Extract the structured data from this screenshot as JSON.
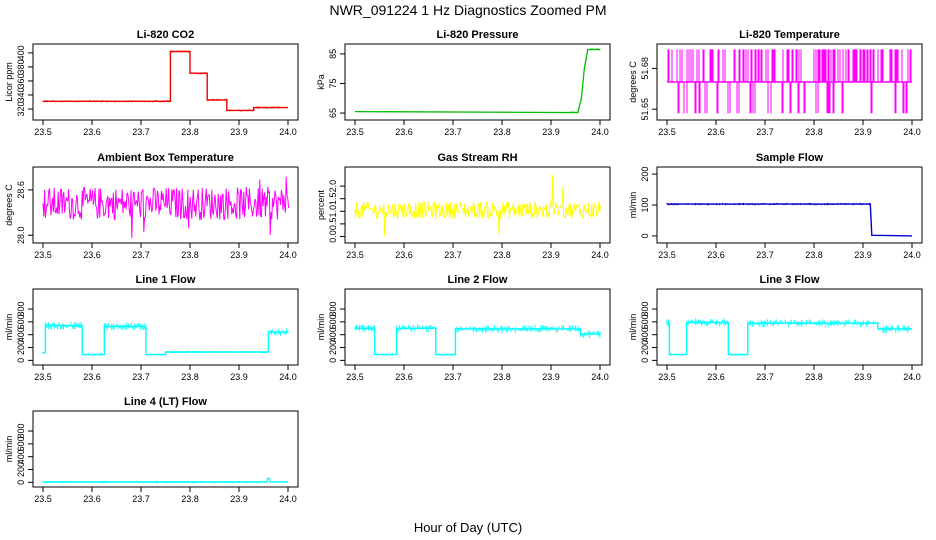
{
  "figure": {
    "title": "NWR_091224  1 Hz Diagnostics Zoomed PM",
    "xlabel": "Hour of Day (UTC)"
  },
  "chart_data": [
    {
      "type": "line",
      "title": "Li-820 CO2",
      "ylabel": "Licor ppm",
      "xlim": [
        23.5,
        24.0
      ],
      "ylim": [
        310,
        407
      ],
      "xticks": [
        23.5,
        23.6,
        23.7,
        23.8,
        23.9,
        24.0
      ],
      "yticks": [
        320,
        340,
        360,
        380,
        400
      ],
      "color": "#ee0000",
      "style": "step",
      "series": [
        {
          "x": [
            23.5,
            23.76,
            23.76,
            23.8,
            23.8,
            23.835,
            23.835,
            23.875,
            23.875,
            23.93,
            23.93,
            24.0
          ],
          "y": [
            331,
            331,
            402,
            402,
            371,
            371,
            333,
            333,
            318,
            318,
            322,
            322
          ]
        }
      ]
    },
    {
      "type": "line",
      "title": "Li-820 Pressure",
      "ylabel": "kPa",
      "xlim": [
        23.5,
        24.0
      ],
      "ylim": [
        64,
        87
      ],
      "xticks": [
        23.5,
        23.6,
        23.7,
        23.8,
        23.9,
        24.0
      ],
      "yticks": [
        65,
        75,
        85
      ],
      "color": "#00bb00",
      "style": "points",
      "series": [
        {
          "x": [
            23.5,
            23.93,
            23.955,
            23.962,
            23.968,
            23.975,
            24.0
          ],
          "y": [
            65.5,
            65.2,
            65.2,
            70,
            80,
            86.5,
            86.5
          ]
        }
      ]
    },
    {
      "type": "line",
      "title": "Li-820 Temperature",
      "ylabel": "degrees C",
      "xlim": [
        23.5,
        24.0
      ],
      "ylim": [
        51.645,
        51.695
      ],
      "xticks": [
        23.5,
        23.6,
        23.7,
        23.8,
        23.9,
        24.0
      ],
      "yticks": [
        51.65,
        51.68
      ],
      "color": "#ff00ff",
      "style": "noise",
      "series": [
        {
          "levels": [
            51.647,
            51.67,
            51.694
          ],
          "base": 51.67
        }
      ]
    },
    {
      "type": "line",
      "title": "Ambient Box Temperature",
      "ylabel": "degrees C",
      "xlim": [
        23.5,
        24.0
      ],
      "ylim": [
        27.95,
        28.85
      ],
      "xticks": [
        23.5,
        23.6,
        23.7,
        23.8,
        23.9,
        24.0
      ],
      "yticks": [
        28.0,
        28.6
      ],
      "color": "#ff00ff",
      "style": "noise",
      "series": [
        {
          "mean": 28.42,
          "spread": 0.22,
          "spike_max": 28.85,
          "spike_min": 27.95
        }
      ]
    },
    {
      "type": "line",
      "title": "Gas Stream RH",
      "ylabel": "percent",
      "xlim": [
        23.5,
        24.0
      ],
      "ylim": [
        -0.1,
        2.6
      ],
      "xticks": [
        23.5,
        23.6,
        23.7,
        23.8,
        23.9,
        24.0
      ],
      "yticks": [
        0.0,
        0.5,
        1.0,
        1.5,
        2.0
      ],
      "color": "#ffff00",
      "style": "noise",
      "series": [
        {
          "mean": 1.05,
          "spread": 0.35,
          "spike_max": 2.5,
          "spike_min": -0.1
        }
      ]
    },
    {
      "type": "line",
      "title": "Sample Flow",
      "ylabel": "ml/min",
      "xlim": [
        23.5,
        24.0
      ],
      "ylim": [
        -10,
        210
      ],
      "xticks": [
        23.5,
        23.6,
        23.7,
        23.8,
        23.9,
        24.0
      ],
      "yticks": [
        0,
        100,
        200
      ],
      "color": "#0000cc",
      "style": "step",
      "series": [
        {
          "x": [
            23.5,
            23.915,
            23.918,
            24.0
          ],
          "y": [
            103,
            103,
            2,
            0
          ]
        }
      ]
    },
    {
      "type": "line",
      "title": "Line 1 Flow",
      "ylabel": "ml/min",
      "xlim": [
        23.5,
        24.0
      ],
      "ylim": [
        -10,
        1050
      ],
      "xticks": [
        23.5,
        23.6,
        23.7,
        23.8,
        23.9,
        24.0
      ],
      "yticks": [
        0,
        200,
        400,
        600,
        800
      ],
      "color": "#00ffff",
      "style": "step",
      "series": [
        {
          "x": [
            23.5,
            23.505,
            23.505,
            23.58,
            23.58,
            23.625,
            23.625,
            23.71,
            23.71,
            23.75,
            23.75,
            23.96,
            23.96,
            24.0
          ],
          "y": [
            120,
            120,
            540,
            540,
            90,
            90,
            530,
            530,
            90,
            90,
            130,
            130,
            440,
            440
          ]
        }
      ]
    },
    {
      "type": "line",
      "title": "Line 2 Flow",
      "ylabel": "ml/min",
      "xlim": [
        23.5,
        24.0
      ],
      "ylim": [
        -10,
        1050
      ],
      "xticks": [
        23.5,
        23.6,
        23.7,
        23.8,
        23.9,
        24.0
      ],
      "yticks": [
        0,
        200,
        400,
        600,
        800
      ],
      "color": "#00ffff",
      "style": "step",
      "series": [
        {
          "x": [
            23.5,
            23.54,
            23.54,
            23.585,
            23.585,
            23.665,
            23.665,
            23.705,
            23.705,
            23.96,
            23.96,
            24.0
          ],
          "y": [
            500,
            500,
            90,
            90,
            500,
            500,
            90,
            90,
            490,
            490,
            410,
            410
          ]
        }
      ]
    },
    {
      "type": "line",
      "title": "Line 3 Flow",
      "ylabel": "ml/min",
      "xlim": [
        23.5,
        24.0
      ],
      "ylim": [
        -10,
        1050
      ],
      "xticks": [
        23.5,
        23.6,
        23.7,
        23.8,
        23.9,
        24.0
      ],
      "yticks": [
        0,
        200,
        400,
        600,
        800
      ],
      "color": "#00ffff",
      "style": "step",
      "series": [
        {
          "x": [
            23.5,
            23.505,
            23.505,
            23.54,
            23.54,
            23.625,
            23.625,
            23.665,
            23.665,
            23.93,
            23.93,
            24.0
          ],
          "y": [
            580,
            580,
            90,
            90,
            590,
            590,
            90,
            90,
            580,
            580,
            490,
            490
          ]
        }
      ]
    },
    {
      "type": "line",
      "title": "Line 4 (LT) Flow",
      "ylabel": "ml/min",
      "xlim": [
        23.5,
        24.0
      ],
      "ylim": [
        -10,
        1050
      ],
      "xticks": [
        23.5,
        23.6,
        23.7,
        23.8,
        23.9,
        24.0
      ],
      "yticks": [
        0,
        200,
        400,
        600,
        800
      ],
      "color": "#00ffff",
      "style": "step",
      "series": [
        {
          "x": [
            23.5,
            23.957,
            23.958,
            23.962,
            23.963,
            24.0
          ],
          "y": [
            5,
            5,
            60,
            60,
            8,
            5
          ]
        }
      ]
    }
  ]
}
